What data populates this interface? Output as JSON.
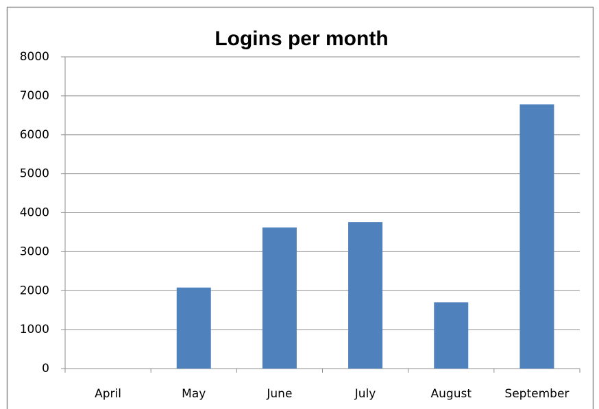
{
  "chart_data": {
    "type": "bar",
    "title": "Logins per month",
    "categories": [
      "April",
      "May",
      "June",
      "July",
      "August",
      "September"
    ],
    "values": [
      0,
      2080,
      3620,
      3760,
      1700,
      6780
    ],
    "color": "#4f81bd",
    "ylim": [
      0,
      8000
    ],
    "yticks": [
      0,
      1000,
      2000,
      3000,
      4000,
      5000,
      6000,
      7000,
      8000
    ],
    "grid": true
  }
}
